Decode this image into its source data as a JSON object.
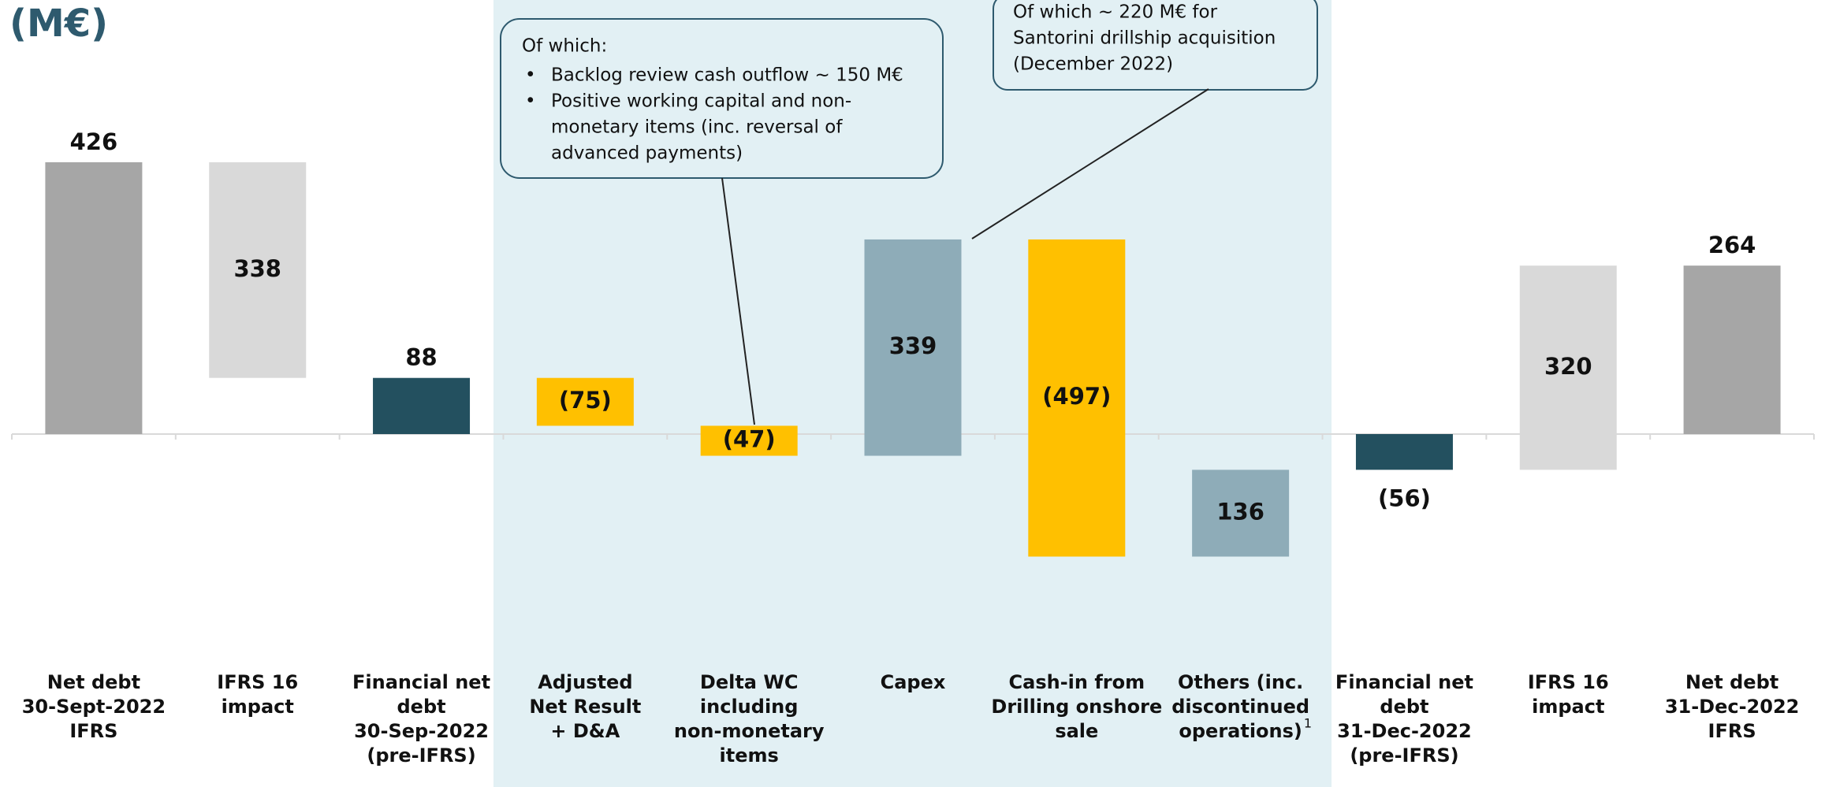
{
  "chart_data": {
    "type": "waterfall",
    "title": "(M€)",
    "categories": [
      [
        "Net debt",
        "30-Sept-2022",
        "IFRS"
      ],
      [
        "IFRS 16",
        "impact"
      ],
      [
        "Financial net",
        "debt",
        "30-Sep-2022",
        "(pre-IFRS)"
      ],
      [
        "Adjusted",
        "Net Result",
        "+ D&A"
      ],
      [
        "Delta WC",
        "including",
        "non-monetary",
        "items"
      ],
      [
        "Capex"
      ],
      [
        "Cash-in from",
        "Drilling onshore",
        "sale"
      ],
      [
        "Others (inc.",
        "discontinued",
        "operations)"
      ],
      [
        "Financial net",
        "debt",
        "31-Dec-2022",
        "(pre-IFRS)"
      ],
      [
        "IFRS 16",
        "impact"
      ],
      [
        "Net debt",
        "31-Dec-2022",
        "IFRS"
      ]
    ],
    "category_footnote": "1",
    "values": [
      426,
      338,
      88,
      -75,
      -47,
      339,
      -497,
      136,
      -56,
      320,
      264
    ],
    "value_labels": [
      "426",
      "338",
      "88",
      "(75)",
      "(47)",
      "339",
      "(497)",
      "136",
      "(56)",
      "320",
      "264"
    ],
    "measures": [
      "total",
      "decrease",
      "total",
      "relative",
      "relative",
      "relative",
      "relative",
      "relative",
      "total",
      "relative",
      "total"
    ],
    "colors": [
      "#a6a6a6",
      "#d9d9d9",
      "#23505f",
      "#ffc000",
      "#ffc000",
      "#8eacb8",
      "#ffc000",
      "#8eacb8",
      "#23505f",
      "#d9d9d9",
      "#a6a6a6"
    ],
    "ylim": [
      -250,
      650
    ],
    "annotations": [
      {
        "heading": "Of which:",
        "bullets": [
          [
            "Backlog review cash outflow ~ 150 M€"
          ],
          [
            "Positive working capital and non-",
            "monetary items (inc. reversal of",
            "advanced payments)"
          ]
        ]
      },
      {
        "lines": [
          "Of which ~ 220 M€ for",
          "Santorini drillship acquisition",
          "(December 2022)"
        ]
      }
    ]
  }
}
